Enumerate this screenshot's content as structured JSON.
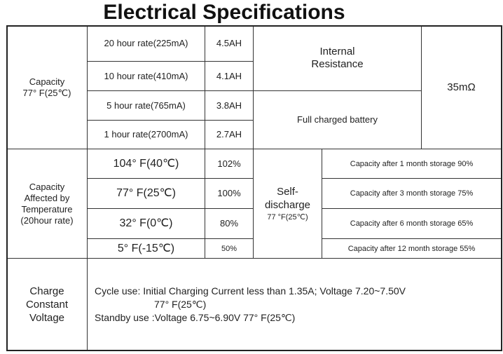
{
  "title": "Electrical Specifications",
  "capacity": {
    "label": "Capacity",
    "cond": "77° F(25℃)",
    "rows": [
      {
        "rate": "20 hour rate(225mA)",
        "value": "4.5AH"
      },
      {
        "rate": "10 hour rate(410mA)",
        "value": "4.1AH"
      },
      {
        "rate": "5 hour rate(765mA)",
        "value": "3.8AH"
      },
      {
        "rate": "1 hour rate(2700mA)",
        "value": "2.7AH"
      }
    ]
  },
  "resistance": {
    "label1": "Internal",
    "label2": "Resistance",
    "sub": "Full charged battery",
    "value": "35mΩ"
  },
  "temperature": {
    "l1": "Capacity",
    "l2": "Affected by",
    "l3": "Temperature",
    "l4": "(20hour rate)",
    "rows": [
      {
        "temp": "104° F(40℃)",
        "value": "102%"
      },
      {
        "temp": "77° F(25℃)",
        "value": "100%"
      },
      {
        "temp": "32° F(0℃)",
        "value": "80%"
      },
      {
        "temp": "5° F(-15℃)",
        "value": "50%"
      }
    ]
  },
  "self_discharge": {
    "l1": "Self-",
    "l2": "discharge",
    "l3": "77 °F(25℃)",
    "rows": [
      "Capacity after 1 month storage 90%",
      "Capacity after 3 month storage 75%",
      "Capacity after 6 month storage 65%",
      "Capacity after 12 month storage 55%"
    ]
  },
  "charge": {
    "l1": "Charge",
    "l2": "Constant",
    "l3": "Voltage",
    "cycle": "Cycle use: Initial Charging Current less than 1.35A; Voltage 7.20~7.50V",
    "cycle_temp": "77° F(25℃)",
    "standby": "Standby use :Voltage 6.75~6.90V 77° F(25℃)"
  }
}
